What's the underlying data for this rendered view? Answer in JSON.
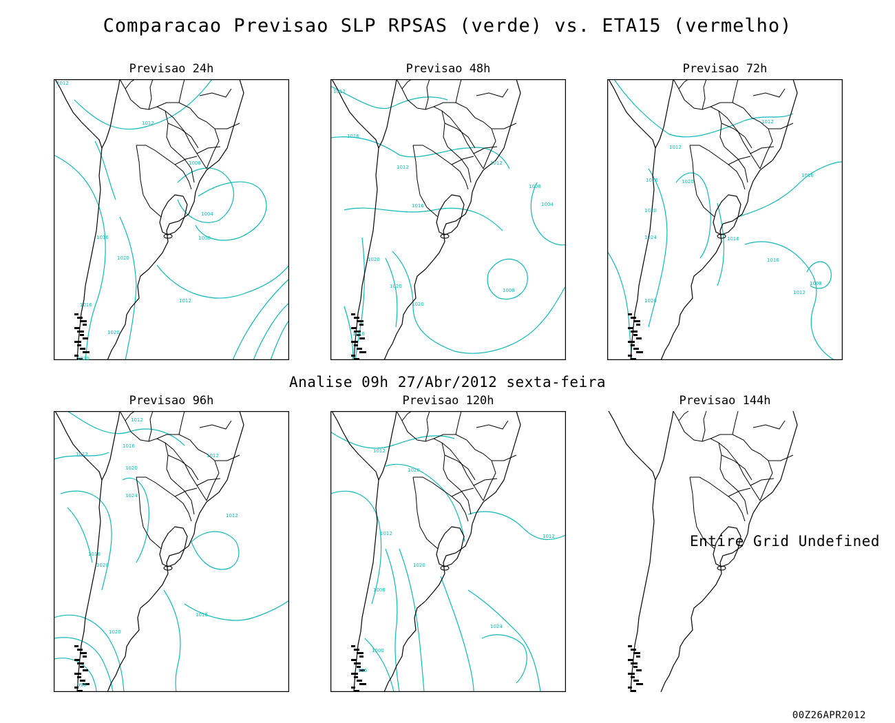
{
  "title": "Comparacao Previsao SLP RPSAS (verde) vs. ETA15 (vermelho)",
  "analysis_label": "Analise 09h 27/Abr/2012 sexta-feira",
  "footer_timestamp": "00Z26APR2012",
  "contour_color": "#10b8b8",
  "border_color": "#000000",
  "panels": [
    {
      "title": "Previsao 24h",
      "labels": [
        "1012",
        "1012",
        "1008",
        "1004",
        "1008",
        "1016",
        "1020",
        "1012",
        "1016",
        "1020",
        "1020"
      ]
    },
    {
      "title": "Previsao 48h",
      "labels": [
        "1012",
        "1016",
        "1012",
        "1012",
        "1008",
        "1004",
        "1016",
        "1020",
        "1008",
        "1020",
        "1020",
        "1016"
      ]
    },
    {
      "title": "Previsao 72h",
      "labels": [
        "1012",
        "1012",
        "1016",
        "1020",
        "1016",
        "1020",
        "1024",
        "1016",
        "1016",
        "1008",
        "1012",
        "1020"
      ]
    },
    {
      "title": "Previsao 96h",
      "labels": [
        "1012",
        "1012",
        "1016",
        "1012",
        "1020",
        "1024",
        "1012",
        "1016",
        "1020",
        "1020",
        "1016",
        "996"
      ]
    },
    {
      "title": "Previsao 120h",
      "labels": [
        "1012",
        "1020",
        "1012",
        "1012",
        "1020",
        "1008",
        "1024",
        "1000",
        "996"
      ]
    },
    {
      "title": "Previsao 144h",
      "message": "Entire Grid Undefined"
    }
  ]
}
